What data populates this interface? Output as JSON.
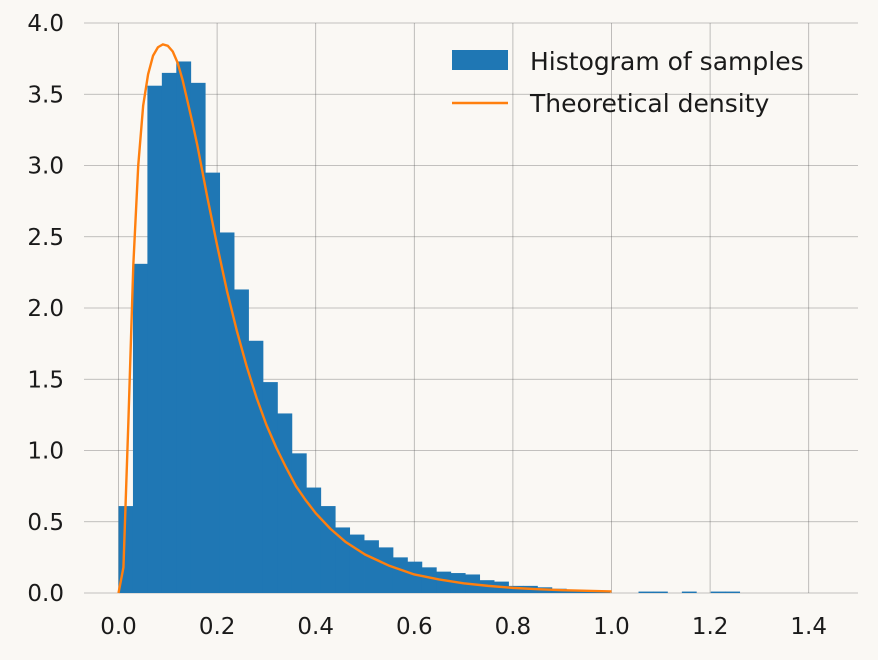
{
  "chart_data": {
    "type": "bar",
    "title": "",
    "xlabel": "",
    "ylabel": "",
    "xlim": [
      -0.07,
      1.5
    ],
    "ylim": [
      0,
      4.0
    ],
    "grid": true,
    "legend_position": "top-right",
    "x_ticks": [
      "0.0",
      "0.2",
      "0.4",
      "0.6",
      "0.8",
      "1.0",
      "1.2",
      "1.4"
    ],
    "x_tick_values": [
      0.0,
      0.2,
      0.4,
      0.6,
      0.8,
      1.0,
      1.2,
      1.4
    ],
    "y_ticks": [
      "0.0",
      "0.5",
      "1.0",
      "1.5",
      "2.0",
      "2.5",
      "3.0",
      "3.5",
      "4.0"
    ],
    "y_tick_values": [
      0.0,
      0.5,
      1.0,
      1.5,
      2.0,
      2.5,
      3.0,
      3.5,
      4.0
    ],
    "series": [
      {
        "name": "Histogram of samples",
        "kind": "histogram",
        "color": "#1f77b4",
        "bin_start": 0.0,
        "bin_width": 0.0293,
        "values": [
          0.61,
          2.31,
          3.56,
          3.65,
          3.73,
          3.58,
          2.95,
          2.53,
          2.13,
          1.77,
          1.48,
          1.26,
          0.98,
          0.74,
          0.61,
          0.46,
          0.41,
          0.37,
          0.32,
          0.25,
          0.22,
          0.18,
          0.15,
          0.14,
          0.13,
          0.09,
          0.08,
          0.05,
          0.05,
          0.04,
          0.03,
          0.02,
          0.02,
          0.01,
          0.0,
          0.0,
          0.01,
          0.01,
          0.0,
          0.01,
          0.0,
          0.01,
          0.01,
          0.0,
          0.0,
          0.0,
          0.0,
          0.0,
          0.0,
          0.0,
          0.0,
          0.0,
          0.0,
          0.0,
          0.0,
          0.0,
          0.0,
          0.0,
          0.0,
          0.0,
          0.0,
          0.0,
          0.0,
          0.0,
          0.0,
          0.0,
          0.0,
          0.0,
          0.0,
          0.0,
          0.0,
          0.0,
          0.0,
          0.0,
          0.0,
          0.0,
          0.0,
          0.0,
          0.0,
          0.0,
          0.0,
          0.0,
          0.0
        ]
      },
      {
        "name": "Theoretical density",
        "kind": "line",
        "color": "#ff7f0e",
        "x": [
          0.0,
          0.01,
          0.02,
          0.03,
          0.04,
          0.05,
          0.06,
          0.07,
          0.08,
          0.09,
          0.1,
          0.11,
          0.12,
          0.13,
          0.14,
          0.15,
          0.16,
          0.17,
          0.18,
          0.2,
          0.22,
          0.24,
          0.26,
          0.28,
          0.3,
          0.32,
          0.34,
          0.36,
          0.38,
          0.4,
          0.43,
          0.46,
          0.5,
          0.55,
          0.6,
          0.65,
          0.7,
          0.75,
          0.8,
          0.85,
          0.9,
          0.95,
          1.0
        ],
        "y": [
          0.0,
          0.18,
          1.2,
          2.3,
          3.0,
          3.42,
          3.64,
          3.77,
          3.83,
          3.85,
          3.84,
          3.8,
          3.72,
          3.6,
          3.45,
          3.3,
          3.14,
          2.96,
          2.78,
          2.44,
          2.12,
          1.84,
          1.59,
          1.37,
          1.18,
          1.02,
          0.88,
          0.75,
          0.65,
          0.56,
          0.45,
          0.36,
          0.27,
          0.19,
          0.13,
          0.095,
          0.068,
          0.05,
          0.036,
          0.027,
          0.02,
          0.015,
          0.011
        ]
      }
    ]
  }
}
